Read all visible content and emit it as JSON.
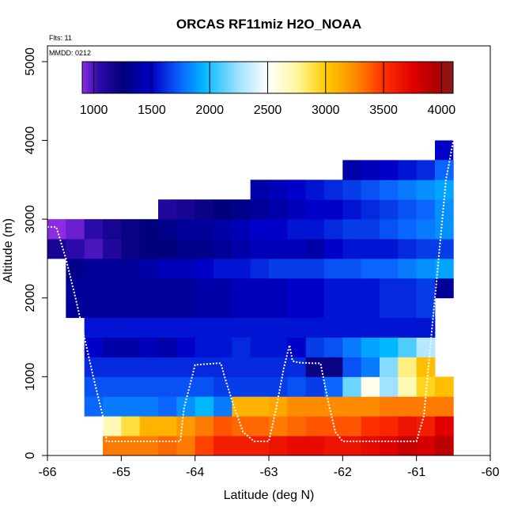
{
  "chart_data": {
    "type": "heatmap",
    "title": "ORCAS RF11miz H2O_NOAA",
    "annotations": [
      "Flts: 11",
      "MMDD: 0212"
    ],
    "xlabel": "Latitude (deg N)",
    "ylabel": "Altitude (m)",
    "xlim": [
      -66,
      -60
    ],
    "ylim": [
      0,
      5200
    ],
    "x_ticks": [
      -66,
      -65,
      -64,
      -63,
      -62,
      -61,
      -60
    ],
    "y_ticks": [
      0,
      1000,
      2000,
      3000,
      4000,
      5000
    ],
    "colorbar": {
      "min": 900,
      "max": 4100,
      "ticks": [
        1000,
        1500,
        2000,
        2500,
        3000,
        3500,
        4000
      ],
      "stops": [
        [
          900,
          "#8b2be2"
        ],
        [
          1050,
          "#2a0aa8"
        ],
        [
          1250,
          "#00007a"
        ],
        [
          1500,
          "#0000c8"
        ],
        [
          1750,
          "#0a66ff"
        ],
        [
          1950,
          "#00b8ff"
        ],
        [
          2250,
          "#a0e2ff"
        ],
        [
          2500,
          "#ffffff"
        ],
        [
          2750,
          "#fff8a0"
        ],
        [
          3000,
          "#ffcc00"
        ],
        [
          3250,
          "#ff8c00"
        ],
        [
          3500,
          "#ff3000"
        ],
        [
          3750,
          "#e00000"
        ],
        [
          3950,
          "#b00000"
        ],
        [
          4100,
          "#8a1a1a"
        ]
      ]
    },
    "grid": {
      "lat_edges": [
        -66.0,
        -65.75,
        -65.5,
        -65.25,
        -65.0,
        -64.75,
        -64.5,
        -64.25,
        -64.0,
        -63.75,
        -63.5,
        -63.25,
        -63.0,
        -62.75,
        -62.5,
        -62.25,
        -62.0,
        -61.75,
        -61.5,
        -61.25,
        -61.0,
        -60.75,
        -60.5
      ],
      "alt_edges": [
        0,
        250,
        500,
        750,
        1000,
        1250,
        1500,
        1750,
        2000,
        2250,
        2500,
        2750,
        3000,
        3250,
        3500,
        3750,
        4000
      ],
      "values": [
        [
          null,
          null,
          null,
          3300,
          3300,
          3300,
          3350,
          3300,
          3450,
          3600,
          3600,
          3600,
          3650,
          3700,
          3700,
          3650,
          3650,
          3700,
          3750,
          3850,
          3800,
          3900,
          null
        ],
        [
          null,
          null,
          null,
          2700,
          2900,
          3100,
          3100,
          3200,
          3300,
          3400,
          3350,
          3350,
          3300,
          3350,
          3400,
          3400,
          3400,
          3500,
          3550,
          3650,
          3600,
          3750,
          null
        ],
        [
          null,
          null,
          1750,
          1800,
          1800,
          1800,
          1750,
          1850,
          1950,
          1800,
          3100,
          3100,
          3150,
          3250,
          3250,
          3250,
          3250,
          3250,
          3300,
          3300,
          3300,
          3300,
          null
        ],
        [
          null,
          null,
          1700,
          1700,
          1700,
          1700,
          1700,
          1700,
          1700,
          1650,
          1650,
          1650,
          1650,
          1700,
          1650,
          1750,
          2150,
          2550,
          2250,
          2700,
          2950,
          3050,
          null
        ],
        [
          null,
          null,
          1600,
          1600,
          1600,
          1600,
          1600,
          1600,
          1600,
          1600,
          1600,
          1600,
          1600,
          1600,
          1200,
          1200,
          1700,
          1800,
          2200,
          2800,
          3050,
          null,
          null
        ],
        [
          null,
          null,
          1500,
          1400,
          1400,
          1450,
          1400,
          1500,
          1550,
          1550,
          1600,
          1550,
          1550,
          1500,
          1650,
          1700,
          1800,
          1900,
          1950,
          2100,
          2300,
          null,
          null
        ],
        [
          null,
          null,
          1550,
          1550,
          1550,
          1550,
          1550,
          1550,
          1550,
          1550,
          1550,
          1550,
          1550,
          1550,
          1550,
          1550,
          1550,
          1550,
          1550,
          1550,
          1550,
          null,
          null
        ],
        [
          null,
          1350,
          1350,
          1350,
          1350,
          1350,
          1350,
          1350,
          1400,
          1400,
          1450,
          1450,
          1450,
          1500,
          1500,
          1550,
          1550,
          1550,
          1600,
          1600,
          1650,
          null,
          null
        ],
        [
          null,
          1350,
          1350,
          1350,
          1350,
          1350,
          1350,
          1350,
          1400,
          1400,
          1450,
          1450,
          1450,
          1500,
          1500,
          1550,
          1550,
          1550,
          1600,
          1600,
          1650,
          1350,
          null
        ],
        [
          null,
          1300,
          1350,
          1350,
          1350,
          1400,
          1450,
          1450,
          1500,
          1550,
          1550,
          1600,
          1650,
          1650,
          1650,
          1700,
          1700,
          1750,
          1750,
          1800,
          1850,
          1900,
          null
        ],
        [
          1150,
          1050,
          1000,
          1100,
          1200,
          1250,
          1250,
          1300,
          1300,
          1350,
          1400,
          1450,
          1450,
          1450,
          1400,
          1500,
          1550,
          1550,
          1550,
          1600,
          1650,
          1650,
          null
        ],
        [
          900,
          950,
          1050,
          1150,
          1200,
          1250,
          1300,
          1350,
          1350,
          1400,
          1450,
          1500,
          1500,
          1550,
          1550,
          1600,
          1650,
          1650,
          1700,
          1750,
          1800,
          1850,
          null
        ],
        [
          null,
          null,
          null,
          null,
          null,
          null,
          1100,
          1150,
          1200,
          1250,
          1300,
          1350,
          1400,
          1450,
          1500,
          1500,
          1550,
          1600,
          1650,
          1700,
          1750,
          1850,
          null
        ],
        [
          null,
          null,
          null,
          null,
          null,
          null,
          null,
          null,
          null,
          null,
          null,
          1400,
          1450,
          1500,
          1550,
          1600,
          1650,
          1700,
          1750,
          1800,
          1850,
          1900,
          null
        ],
        [
          null,
          null,
          null,
          null,
          null,
          null,
          null,
          null,
          null,
          null,
          null,
          null,
          null,
          null,
          null,
          null,
          1400,
          1450,
          1500,
          1550,
          1600,
          1750,
          null
        ],
        [
          null,
          null,
          null,
          null,
          null,
          null,
          null,
          null,
          null,
          null,
          null,
          null,
          null,
          null,
          null,
          null,
          null,
          null,
          null,
          null,
          null,
          null,
          null
        ]
      ],
      "extra_cells": [
        {
          "lat_min": -60.75,
          "lat_max": -60.5,
          "alt_min": 3750,
          "alt_max": 4000,
          "value": 1500
        }
      ]
    },
    "flight_track": {
      "lat": [
        -66.0,
        -65.88,
        -65.75,
        -65.62,
        -65.5,
        -65.38,
        -65.25,
        -65.2,
        -65.2,
        -64.9,
        -64.6,
        -64.3,
        -64.2,
        -64.15,
        -64.0,
        -63.7,
        -63.65,
        -63.6,
        -63.5,
        -63.35,
        -63.2,
        -63.1,
        -63.0,
        -62.9,
        -62.8,
        -62.72,
        -62.68,
        -62.6,
        -62.4,
        -62.3,
        -62.2,
        -62.1,
        -62.0,
        -61.9,
        -61.7,
        -61.6,
        -61.4,
        -61.2,
        -61.0,
        -60.9,
        -60.8,
        -60.7,
        -60.6,
        -60.5
      ],
      "alt": [
        2900,
        2900,
        2500,
        2000,
        1500,
        1000,
        500,
        200,
        180,
        180,
        180,
        180,
        180,
        600,
        1150,
        1170,
        1170,
        1000,
        700,
        300,
        180,
        180,
        180,
        600,
        1100,
        1400,
        1200,
        1180,
        1170,
        1170,
        700,
        300,
        180,
        180,
        180,
        180,
        180,
        180,
        180,
        500,
        1500,
        2500,
        3500,
        4000
      ]
    }
  }
}
